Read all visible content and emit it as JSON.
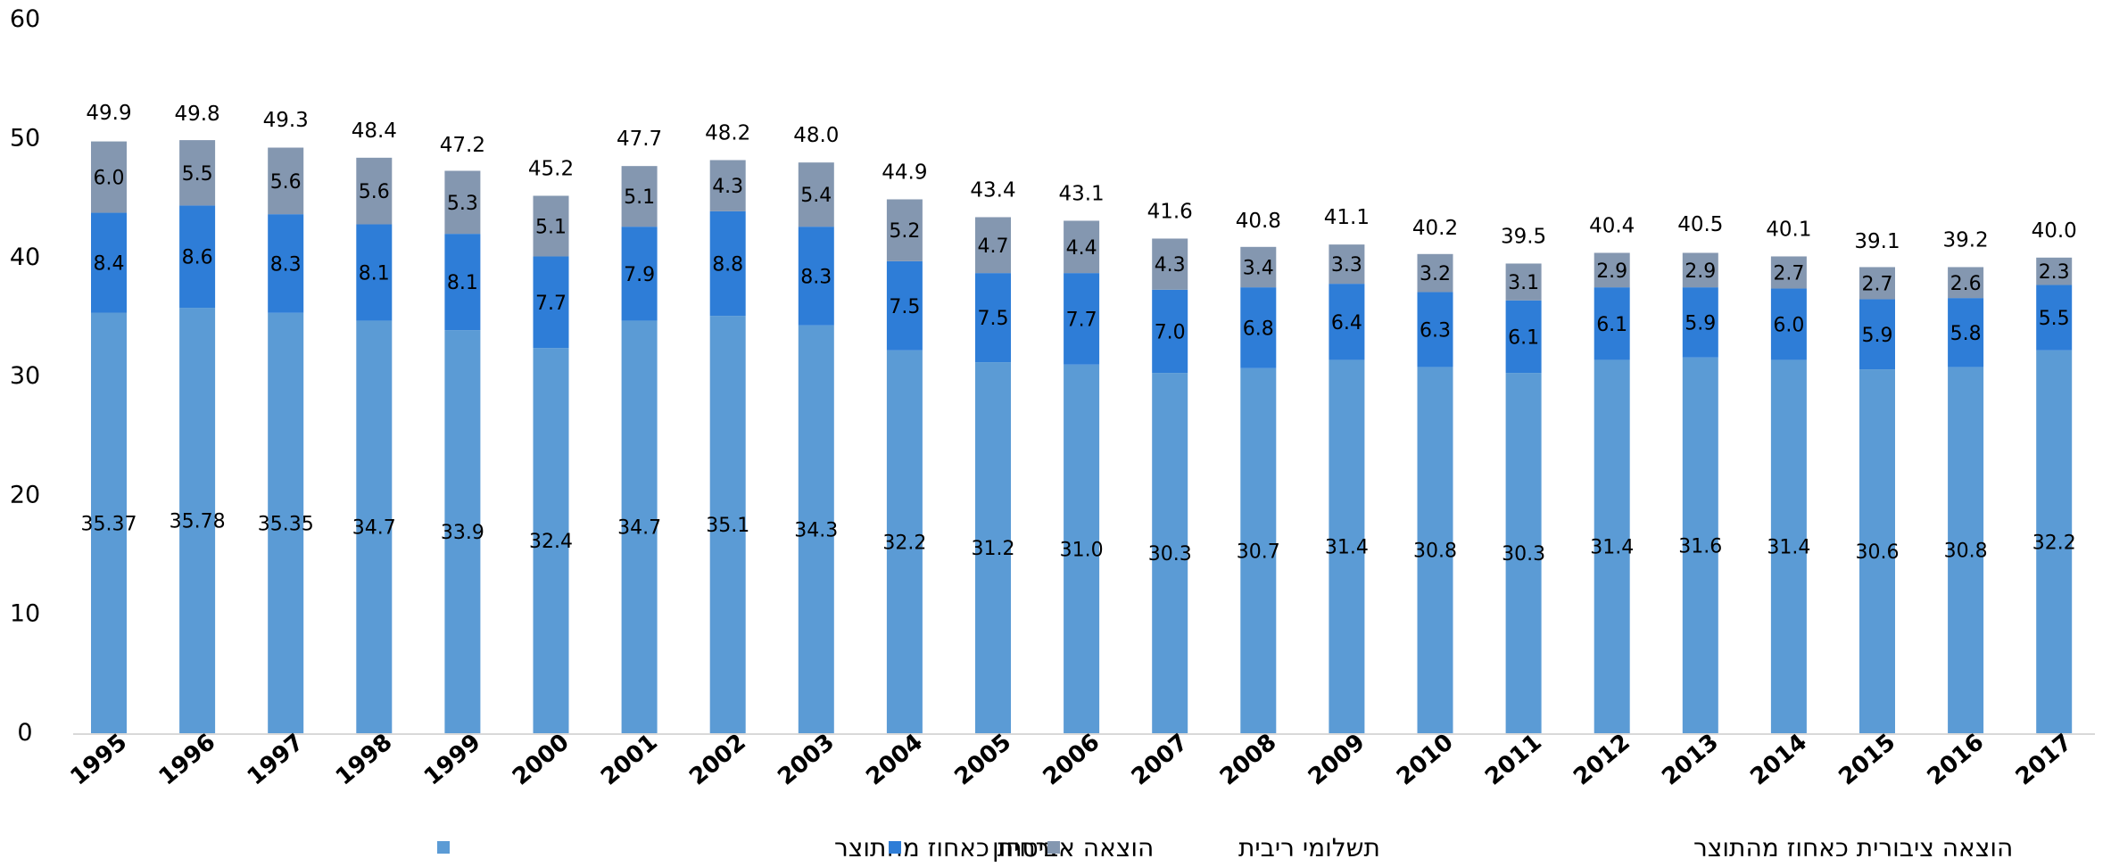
{
  "chart_data": {
    "type": "bar",
    "stacked": true,
    "categories": [
      "1995",
      "1996",
      "1997",
      "1998",
      "1999",
      "2000",
      "2001",
      "2002",
      "2003",
      "2004",
      "2005",
      "2006",
      "2007",
      "2008",
      "2009",
      "2010",
      "2011",
      "2012",
      "2013",
      "2014",
      "2015",
      "2016",
      "2017"
    ],
    "series": [
      {
        "name": "הוצאה אזרחית כאחוז מהתוצר",
        "color": "#5b9bd5",
        "values": [
          35.37,
          35.78,
          35.35,
          34.7,
          33.9,
          32.4,
          34.7,
          35.1,
          34.3,
          32.2,
          31.2,
          31.0,
          30.3,
          30.7,
          31.4,
          30.8,
          30.3,
          31.4,
          31.6,
          31.4,
          30.6,
          30.8,
          32.2
        ],
        "labels": [
          "35.37",
          "35.78",
          "35.35",
          "34.7",
          "33.9",
          "32.4",
          "34.7",
          "35.1",
          "34.3",
          "32.2",
          "31.2",
          "31.0",
          "30.3",
          "30.7",
          "31.4",
          "30.8",
          "30.3",
          "31.4",
          "31.6",
          "31.4",
          "30.6",
          "30.8",
          "32.2"
        ]
      },
      {
        "name": "ביטחון",
        "color": "#2e7dd7",
        "values": [
          8.4,
          8.6,
          8.3,
          8.1,
          8.1,
          7.7,
          7.9,
          8.8,
          8.3,
          7.5,
          7.5,
          7.7,
          7.0,
          6.8,
          6.4,
          6.3,
          6.1,
          6.1,
          5.9,
          6.0,
          5.9,
          5.8,
          5.5
        ],
        "labels": [
          "8.4",
          "8.6",
          "8.3",
          "8.1",
          "8.1",
          "7.7",
          "7.9",
          "8.8",
          "8.3",
          "7.5",
          "7.5",
          "7.7",
          "7.0",
          "6.8",
          "6.4",
          "6.3",
          "6.1",
          "6.1",
          "5.9",
          "6.0",
          "5.9",
          "5.8",
          "5.5"
        ]
      },
      {
        "name": "תשלומי ריבית",
        "color": "#8497b0",
        "values": [
          6.0,
          5.5,
          5.6,
          5.6,
          5.3,
          5.1,
          5.1,
          4.3,
          5.4,
          5.2,
          4.7,
          4.4,
          4.3,
          3.4,
          3.3,
          3.2,
          3.1,
          2.9,
          2.9,
          2.7,
          2.7,
          2.6,
          2.3
        ],
        "labels": [
          "6.0",
          "5.5",
          "5.6",
          "5.6",
          "5.3",
          "5.1",
          "5.1",
          "4.3",
          "5.4",
          "5.2",
          "4.7",
          "4.4",
          "4.3",
          "3.4",
          "3.3",
          "3.2",
          "3.1",
          "2.9",
          "2.9",
          "2.7",
          "2.7",
          "2.6",
          "2.3"
        ]
      }
    ],
    "totals": {
      "name": "הוצאה ציבורית כאחוז מהתוצר",
      "values": [
        49.9,
        49.8,
        49.3,
        48.4,
        47.2,
        45.2,
        47.7,
        48.2,
        48.0,
        44.9,
        43.4,
        43.1,
        41.6,
        40.8,
        41.1,
        40.2,
        39.5,
        40.4,
        40.5,
        40.1,
        39.1,
        39.2,
        40.0
      ],
      "labels": [
        "49.9",
        "49.8",
        "49.3",
        "48.4",
        "47.2",
        "45.2",
        "47.7",
        "48.2",
        "48.0",
        "44.9",
        "43.4",
        "43.1",
        "41.6",
        "40.8",
        "41.1",
        "40.2",
        "39.5",
        "40.4",
        "40.5",
        "40.1",
        "39.1",
        "39.2",
        "40.0"
      ]
    },
    "yticks": [
      "0",
      "10",
      "20",
      "30",
      "40",
      "50",
      "60"
    ],
    "ylim": [
      0,
      60
    ],
    "grid": false,
    "legend_position": "bottom",
    "title": "",
    "xlabel": "",
    "ylabel": ""
  }
}
